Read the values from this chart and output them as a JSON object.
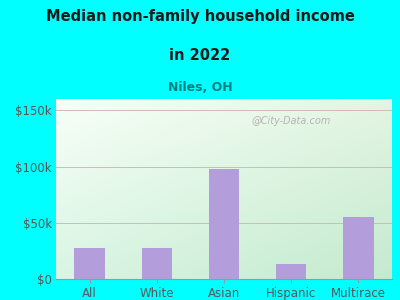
{
  "title_line1": "Median non-family household income",
  "title_line2": "in 2022",
  "subtitle": "Niles, OH",
  "categories": [
    "All",
    "White",
    "Asian",
    "Hispanic",
    "Multirace"
  ],
  "values": [
    28000,
    28000,
    98000,
    13000,
    55000
  ],
  "bar_color": "#b39ddb",
  "ylim": [
    0,
    160000
  ],
  "yticks": [
    0,
    50000,
    100000,
    150000
  ],
  "ytick_labels": [
    "$0",
    "$50k",
    "$100k",
    "$150k"
  ],
  "grid_color": "#d4b8b8",
  "bg_topleft_color": [
    0.82,
    0.93,
    0.88
  ],
  "bg_topright_color": [
    0.97,
    0.99,
    0.97
  ],
  "bg_bottomleft_color": [
    0.82,
    0.95,
    0.88
  ],
  "bg_bottomright_color": [
    0.95,
    1.0,
    0.95
  ],
  "outer_bg_color": "#00FFFF",
  "title_color": "#1a1a1a",
  "subtitle_color": "#008080",
  "axis_label_color": "#555555",
  "tick_color": "#555555",
  "watermark": "@City-Data.com",
  "watermark_color": "#aaaaaa"
}
